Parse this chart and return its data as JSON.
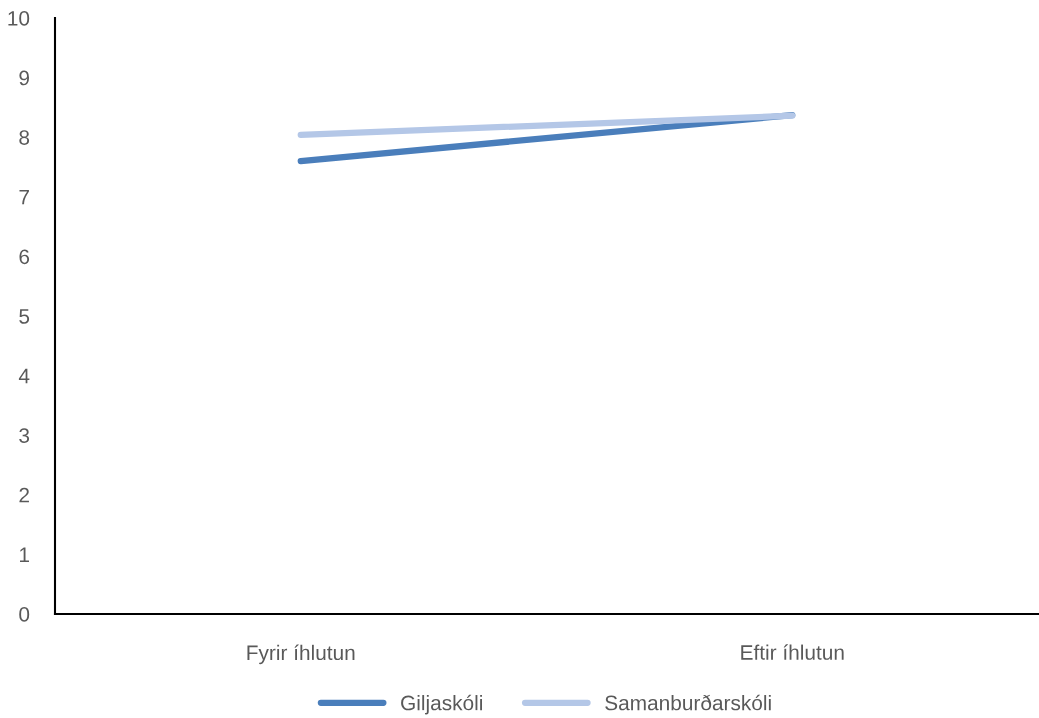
{
  "chart_data": {
    "type": "line",
    "categories": [
      "Fyrir íhlutun",
      "Eftir íhlutun"
    ],
    "series": [
      {
        "name": "Giljaskóli",
        "color": "#4a7ebb",
        "values": [
          7.6,
          8.37
        ]
      },
      {
        "name": "Samanburðarskóli",
        "color": "#b4c7e7",
        "values": [
          8.04,
          8.36
        ]
      }
    ],
    "ylim": [
      0,
      10
    ],
    "yticks": [
      0,
      1,
      2,
      3,
      4,
      5,
      6,
      7,
      8,
      9,
      10
    ],
    "grid": false,
    "legend": "bottom",
    "marker": "none",
    "line_style": "solid"
  }
}
